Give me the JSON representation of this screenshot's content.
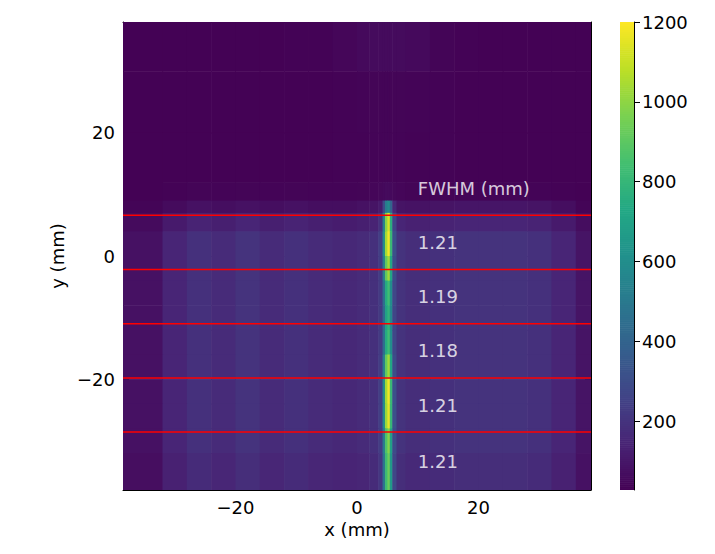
{
  "chart_data": {
    "type": "heatmap",
    "xlabel": "x (mm)",
    "ylabel": "y (mm)",
    "xlim": [
      -38.5,
      38.5
    ],
    "ylim": [
      -38,
      38
    ],
    "xticks": [
      {
        "value": -20,
        "label": "−20"
      },
      0,
      20
    ],
    "yticks": [
      {
        "value": -20,
        "label": "−20"
      },
      0,
      20
    ],
    "x_edges": [
      -38.5,
      -32,
      -28,
      -24,
      -20,
      -16,
      -12,
      -8,
      -4,
      0,
      2,
      3.5,
      4.2,
      4.6,
      5.0,
      5.4,
      5.8,
      6.5,
      8,
      12,
      16,
      20,
      24,
      28,
      32,
      36,
      38.5
    ],
    "y_edges": [
      38,
      30,
      20,
      12,
      9,
      7,
      4,
      0,
      -4,
      -8,
      -12,
      -16,
      -20,
      -24,
      -28,
      -32,
      -38
    ],
    "cells": [
      [
        30,
        30,
        32,
        32,
        32,
        32,
        35,
        35,
        45,
        55,
        60,
        60,
        60,
        60,
        60,
        60,
        60,
        60,
        55,
        40,
        35,
        32,
        32,
        30,
        30,
        30
      ],
      [
        30,
        30,
        32,
        32,
        32,
        32,
        33,
        33,
        35,
        38,
        40,
        40,
        40,
        40,
        40,
        40,
        40,
        40,
        38,
        35,
        33,
        32,
        32,
        30,
        30,
        30
      ],
      [
        30,
        30,
        32,
        32,
        32,
        32,
        33,
        33,
        35,
        36,
        38,
        38,
        40,
        40,
        40,
        40,
        38,
        38,
        36,
        35,
        33,
        32,
        32,
        30,
        30,
        30
      ],
      [
        30,
        35,
        40,
        38,
        40,
        38,
        40,
        38,
        38,
        40,
        45,
        50,
        55,
        60,
        60,
        55,
        50,
        45,
        40,
        40,
        40,
        40,
        40,
        38,
        35,
        30
      ],
      [
        40,
        60,
        80,
        70,
        80,
        70,
        80,
        70,
        70,
        80,
        90,
        115,
        289,
        518,
        590,
        406,
        151,
        90,
        85,
        90,
        95,
        95,
        95,
        90,
        70,
        40
      ],
      [
        60,
        113,
        143,
        128,
        150,
        128,
        143,
        128,
        120,
        128,
        143,
        196,
        538,
        989,
        1130,
        768,
        266,
        150,
        135,
        143,
        150,
        150,
        150,
        143,
        113,
        68
      ],
      [
        80,
        150,
        190,
        170,
        200,
        170,
        190,
        170,
        160,
        170,
        190,
        245,
        587,
        1039,
        1180,
        818,
        316,
        200,
        180,
        190,
        200,
        200,
        200,
        190,
        150,
        90
      ],
      [
        80,
        150,
        190,
        170,
        200,
        170,
        190,
        170,
        160,
        170,
        190,
        238,
        528,
        913,
        1033,
        725,
        298,
        200,
        180,
        190,
        200,
        200,
        200,
        190,
        150,
        90
      ],
      [
        80,
        150,
        190,
        170,
        200,
        170,
        190,
        170,
        160,
        170,
        190,
        228,
        450,
        745,
        837,
        601,
        274,
        200,
        180,
        190,
        200,
        200,
        200,
        190,
        150,
        90
      ],
      [
        80,
        150,
        190,
        170,
        200,
        170,
        190,
        170,
        160,
        170,
        190,
        225,
        431,
        703,
        788,
        570,
        268,
        200,
        180,
        190,
        200,
        200,
        200,
        190,
        150,
        90
      ],
      [
        80,
        150,
        190,
        170,
        200,
        170,
        190,
        170,
        160,
        170,
        190,
        228,
        450,
        745,
        837,
        601,
        274,
        200,
        180,
        190,
        200,
        200,
        200,
        190,
        150,
        90
      ],
      [
        80,
        150,
        190,
        170,
        200,
        170,
        190,
        170,
        160,
        170,
        190,
        238,
        528,
        913,
        1033,
        725,
        298,
        200,
        180,
        190,
        200,
        200,
        200,
        190,
        150,
        90
      ],
      [
        80,
        150,
        190,
        170,
        200,
        170,
        190,
        170,
        160,
        170,
        190,
        245,
        587,
        1039,
        1180,
        818,
        316,
        200,
        180,
        190,
        200,
        200,
        200,
        190,
        150,
        90
      ],
      [
        80,
        150,
        190,
        170,
        200,
        170,
        190,
        170,
        160,
        170,
        190,
        244,
        579,
        1022,
        1160,
        806,
        313,
        200,
        180,
        190,
        200,
        200,
        200,
        190,
        150,
        90
      ],
      [
        80,
        150,
        190,
        170,
        200,
        170,
        190,
        170,
        160,
        170,
        190,
        235,
        509,
        871,
        984,
        694,
        292,
        200,
        180,
        190,
        200,
        200,
        200,
        190,
        150,
        90
      ],
      [
        72,
        135,
        171,
        153,
        180,
        153,
        171,
        153,
        144,
        153,
        171,
        215,
        478,
        826,
        935,
        656,
        269,
        180,
        162,
        171,
        180,
        180,
        180,
        171,
        135,
        81
      ]
    ],
    "colorbar": {
      "range": [
        28,
        1200
      ],
      "ticks": [
        200,
        400,
        600,
        800,
        1000,
        1200
      ]
    },
    "reference_lines": {
      "y": [
        6.6,
        -2.2,
        -11.0,
        -19.8,
        -28.6
      ],
      "color": "#ff0000"
    },
    "annotation_title": "FWHM (mm)",
    "fwhm": [
      1.21,
      1.19,
      1.18,
      1.21,
      1.21
    ]
  }
}
